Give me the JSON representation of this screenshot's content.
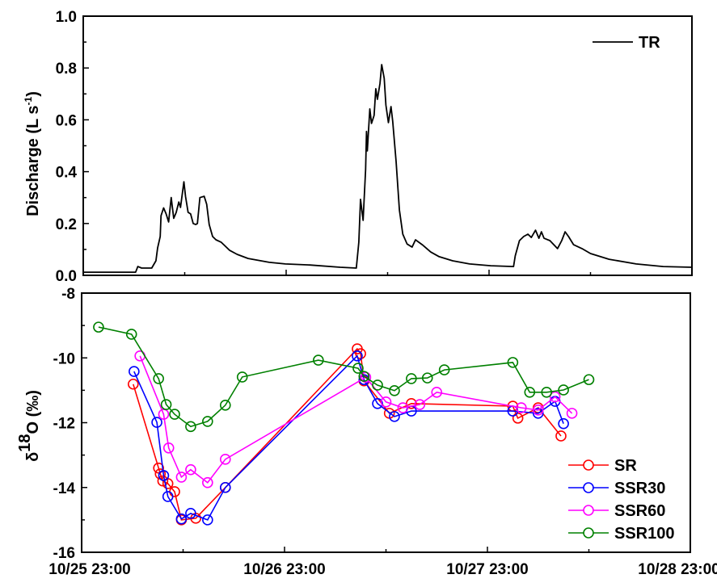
{
  "chart_data": [
    {
      "type": "line",
      "ylabel": {
        "main": "Discharge (L s",
        "sup": "-1",
        "close": ")"
      },
      "ylim": [
        0,
        1.0
      ],
      "yticks": [
        "0.0",
        "0.2",
        "0.4",
        "0.6",
        "0.8",
        "1.0"
      ],
      "xlim_hours": [
        0,
        72
      ],
      "legend": {
        "position": "top-right",
        "entries": [
          "TR"
        ]
      },
      "series": [
        {
          "name": "TR",
          "color": "#000000",
          "x_hours": [
            0,
            6.2,
            6.45,
            6.9,
            8.1,
            8.6,
            8.8,
            9.1,
            9.2,
            9.5,
            9.8,
            10.1,
            10.4,
            10.7,
            11.0,
            11.3,
            11.5,
            11.9,
            12.1,
            12.4,
            12.7,
            13.0,
            13.3,
            13.5,
            13.8,
            14.3,
            14.6,
            14.9,
            15.3,
            15.7,
            16.3,
            17.3,
            18.2,
            19.5,
            22.0,
            23.9,
            26.8,
            30.4,
            32.3,
            32.6,
            32.8,
            33.1,
            33.4,
            33.5,
            33.6,
            33.9,
            34.1,
            34.4,
            34.6,
            34.8,
            35.1,
            35.3,
            35.6,
            35.8,
            36.1,
            36.4,
            36.6,
            37.0,
            37.4,
            37.8,
            38.3,
            38.9,
            39.3,
            40.1,
            41.1,
            42.1,
            43.7,
            45.7,
            48.2,
            50.9,
            51.1,
            51.6,
            52.1,
            52.6,
            53.0,
            53.5,
            53.9,
            54.2,
            54.5,
            55.2,
            56.1,
            56.6,
            57.0,
            57.4,
            58.0,
            59.0,
            60.0,
            62.2,
            65.4,
            68.6,
            72.0
          ],
          "y": [
            0.012,
            0.012,
            0.034,
            0.028,
            0.028,
            0.056,
            0.106,
            0.15,
            0.23,
            0.26,
            0.237,
            0.206,
            0.3,
            0.22,
            0.243,
            0.283,
            0.262,
            0.361,
            0.305,
            0.243,
            0.237,
            0.2,
            0.196,
            0.2,
            0.3,
            0.305,
            0.274,
            0.196,
            0.15,
            0.137,
            0.128,
            0.097,
            0.081,
            0.065,
            0.05,
            0.044,
            0.04,
            0.031,
            0.028,
            0.128,
            0.293,
            0.212,
            0.408,
            0.555,
            0.48,
            0.642,
            0.586,
            0.617,
            0.72,
            0.679,
            0.741,
            0.813,
            0.76,
            0.657,
            0.589,
            0.651,
            0.595,
            0.44,
            0.252,
            0.159,
            0.121,
            0.109,
            0.137,
            0.118,
            0.09,
            0.072,
            0.056,
            0.044,
            0.037,
            0.034,
            0.075,
            0.134,
            0.15,
            0.159,
            0.146,
            0.174,
            0.143,
            0.168,
            0.143,
            0.134,
            0.103,
            0.134,
            0.168,
            0.15,
            0.118,
            0.103,
            0.084,
            0.062,
            0.044,
            0.034,
            0.031
          ]
        }
      ]
    },
    {
      "type": "line",
      "ylabel": {
        "delta": "δ",
        "sup": "18",
        "main": "O (‰)"
      },
      "ylim": [
        -16,
        -8
      ],
      "yticks": [
        "-16",
        "-14",
        "-12",
        "-10",
        "-8"
      ],
      "xlim_hours": [
        0,
        72
      ],
      "xticks": [
        "10/25 23:00",
        "10/26 23:00",
        "10/27 23:00",
        "10/28 23:00"
      ],
      "legend": {
        "position": "bottom-right",
        "entries": [
          "SR",
          "SSR30",
          "SSR60",
          "SSR100"
        ]
      },
      "series": [
        {
          "name": "SR",
          "color": "#ff0000",
          "x_hours": [
            6.1,
            9.1,
            9.3,
            9.6,
            10.2,
            11.0,
            11.8,
            13.5,
            17.0,
            32.6,
            33.0,
            33.4,
            36.4,
            39.0,
            51.0,
            51.6,
            54.0,
            56.7
          ],
          "y": [
            -10.81,
            -13.4,
            -13.58,
            -13.8,
            -13.88,
            -14.13,
            -15.0,
            -14.95,
            -14.0,
            -9.72,
            -9.87,
            -10.71,
            -11.71,
            -11.41,
            -11.49,
            -11.86,
            -11.54,
            -12.41
          ]
        },
        {
          "name": "SSR30",
          "color": "#0000ff",
          "x_hours": [
            6.2,
            8.9,
            9.7,
            10.2,
            11.8,
            12.9,
            14.9,
            17.0,
            32.6,
            33.4,
            35.0,
            37.0,
            39.0,
            51.0,
            54.0,
            56.0,
            57.0
          ],
          "y": [
            -10.42,
            -11.99,
            -13.63,
            -14.28,
            -14.97,
            -14.8,
            -15.0,
            -14.0,
            -9.94,
            -10.67,
            -11.41,
            -11.81,
            -11.64,
            -11.64,
            -11.71,
            -11.34,
            -12.03
          ]
        },
        {
          "name": "SSR60",
          "color": "#ff00ff",
          "x_hours": [
            6.9,
            9.7,
            10.3,
            11.8,
            12.9,
            14.9,
            17.0,
            33.6,
            36.0,
            38.0,
            40.0,
            42.0,
            52.0,
            54.0,
            56.0,
            58.0
          ],
          "y": [
            -9.94,
            -11.74,
            -12.78,
            -13.68,
            -13.45,
            -13.85,
            -13.13,
            -10.6,
            -11.36,
            -11.54,
            -11.44,
            -11.06,
            -11.54,
            -11.61,
            -11.2,
            -11.71
          ]
        },
        {
          "name": "SSR100",
          "color": "#008000",
          "x_hours": [
            2.0,
            5.9,
            9.1,
            10.0,
            11.0,
            12.9,
            14.9,
            17.0,
            19.0,
            28.0,
            32.7,
            33.4,
            35.0,
            37.0,
            39.0,
            40.9,
            42.9,
            51.0,
            53.0,
            55.0,
            57.0,
            60.0
          ],
          "y": [
            -9.05,
            -9.27,
            -10.64,
            -11.44,
            -11.74,
            -12.12,
            -11.96,
            -11.46,
            -10.59,
            -10.07,
            -10.32,
            -10.57,
            -10.84,
            -11.01,
            -10.64,
            -10.62,
            -10.37,
            -10.14,
            -11.06,
            -11.06,
            -10.99,
            -10.67
          ]
        }
      ]
    }
  ]
}
